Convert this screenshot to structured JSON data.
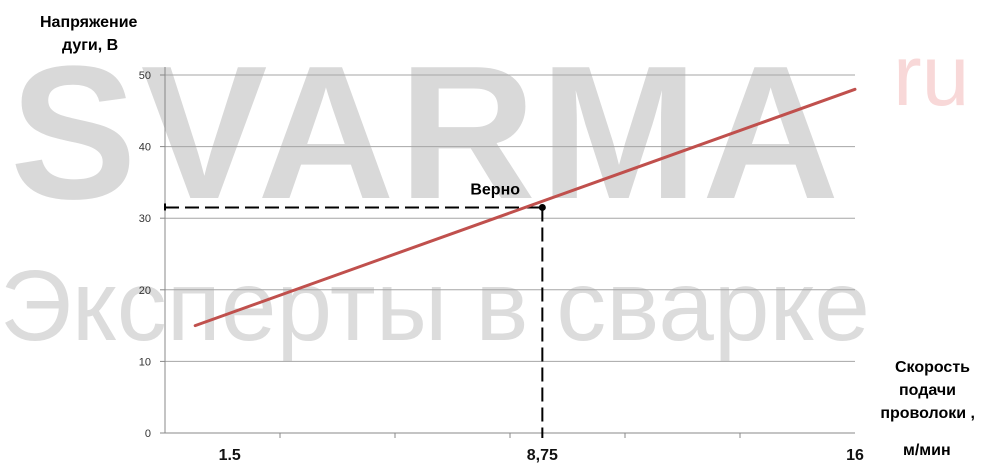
{
  "watermark": {
    "main": "SVARMA",
    "suffix": "ru",
    "tagline": "Эксперты в сварке"
  },
  "chart_data": {
    "type": "line",
    "ylabel_lines": [
      "Напряжение",
      "дуги, В"
    ],
    "xlabel_lines": [
      "Скорость",
      "подачи",
      "проволоки ,"
    ],
    "xunit": "м/мин",
    "ylim": [
      0,
      50
    ],
    "yticks": [
      0,
      10,
      20,
      30,
      40,
      50
    ],
    "yticks_labels": [
      "0",
      "10",
      "20",
      "30",
      "40",
      "50"
    ],
    "xlim": [
      0,
      16
    ],
    "xticks": [
      1.5,
      8.75,
      16
    ],
    "xticks_labels": [
      "1.5",
      "8,75",
      "16"
    ],
    "grid": true,
    "series": [
      {
        "x": [
          0.7,
          16.0
        ],
        "y": [
          15.0,
          48.0
        ],
        "color": "#c0504d"
      }
    ],
    "annotation": {
      "label": "Верно",
      "x": 8.75,
      "y": 31.5
    }
  }
}
